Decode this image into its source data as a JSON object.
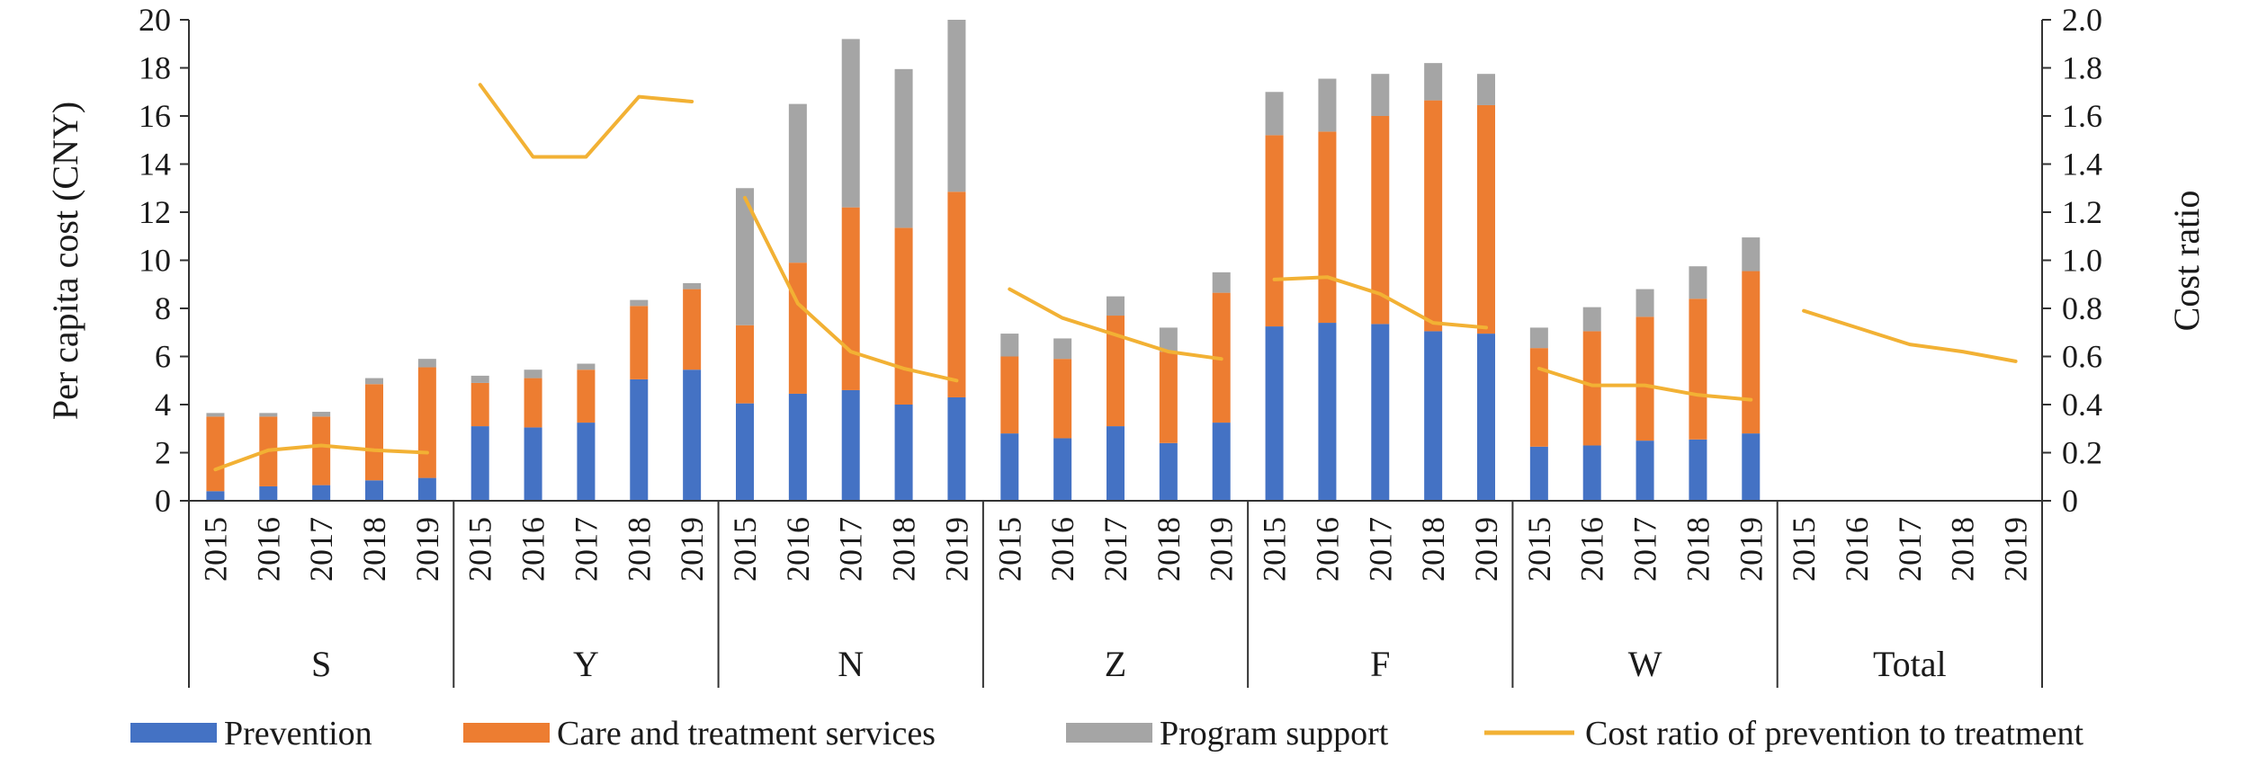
{
  "chart_data": {
    "type": "bar",
    "stacked": true,
    "ylabel": "Per capita cost (CNY)",
    "y2label": "Cost ratio",
    "ylim": [
      0,
      20
    ],
    "y2lim": [
      0,
      2.0
    ],
    "yticks": [
      "0",
      "2",
      "4",
      "6",
      "8",
      "10",
      "12",
      "14",
      "16",
      "18",
      "20"
    ],
    "y2ticks": [
      "0",
      "0.2",
      "0.4",
      "0.6",
      "0.8",
      "1.0",
      "1.2",
      "1.4",
      "1.6",
      "1.8",
      "2.0"
    ],
    "legend_position": "bottom",
    "years": [
      "2015",
      "2016",
      "2017",
      "2018",
      "2019"
    ],
    "groups": [
      {
        "name": "S",
        "prevention": [
          0.4,
          0.6,
          0.65,
          0.85,
          0.95
        ],
        "care": [
          3.1,
          2.9,
          2.85,
          4.0,
          4.6
        ],
        "support": [
          0.15,
          0.15,
          0.2,
          0.25,
          0.35
        ],
        "ratio": [
          0.13,
          0.21,
          0.23,
          0.21,
          0.2
        ]
      },
      {
        "name": "Y",
        "prevention": [
          3.1,
          3.05,
          3.25,
          5.05,
          5.45
        ],
        "care": [
          1.8,
          2.05,
          2.2,
          3.05,
          3.35
        ],
        "support": [
          0.3,
          0.35,
          0.25,
          0.25,
          0.25
        ],
        "ratio": [
          1.73,
          1.43,
          1.43,
          1.68,
          1.66
        ]
      },
      {
        "name": "N",
        "prevention": [
          4.05,
          4.45,
          4.6,
          4.0,
          4.3
        ],
        "care": [
          3.25,
          5.45,
          7.6,
          7.35,
          8.55
        ],
        "support": [
          5.7,
          6.6,
          7.0,
          6.6,
          7.15
        ],
        "ratio": [
          1.26,
          0.82,
          0.62,
          0.55,
          0.5
        ]
      },
      {
        "name": "Z",
        "prevention": [
          2.8,
          2.6,
          3.1,
          2.4,
          3.25
        ],
        "care": [
          3.2,
          3.3,
          4.6,
          3.8,
          5.4
        ],
        "support": [
          0.95,
          0.85,
          0.8,
          1.0,
          0.85
        ],
        "ratio": [
          0.88,
          0.76,
          0.69,
          0.62,
          0.59
        ]
      },
      {
        "name": "F",
        "prevention": [
          7.25,
          7.4,
          7.35,
          7.05,
          6.95
        ],
        "care": [
          7.95,
          7.95,
          8.65,
          9.6,
          9.5
        ],
        "support": [
          1.8,
          2.2,
          1.75,
          1.55,
          1.3
        ],
        "ratio": [
          0.92,
          0.93,
          0.86,
          0.74,
          0.72
        ]
      },
      {
        "name": "W",
        "prevention": [
          2.25,
          2.3,
          2.5,
          2.55,
          2.8
        ],
        "care": [
          4.1,
          4.75,
          5.15,
          5.85,
          6.75
        ],
        "support": [
          0.85,
          1.0,
          1.15,
          1.35,
          1.4
        ],
        "ratio": [
          0.55,
          0.48,
          0.48,
          0.44,
          0.42
        ]
      },
      {
        "name": "Total",
        "prevention": [
          null,
          null,
          null,
          null,
          null
        ],
        "care": [
          null,
          null,
          null,
          null,
          null
        ],
        "support": [
          null,
          null,
          null,
          null,
          null
        ],
        "ratio": [
          0.79,
          0.72,
          0.65,
          0.62,
          0.58
        ]
      }
    ],
    "series": [
      {
        "key": "prevention",
        "name": "Prevention",
        "kind": "bar",
        "color": "#4472C4"
      },
      {
        "key": "care",
        "name": "Care and treatment services",
        "kind": "bar",
        "color": "#ED7D31"
      },
      {
        "key": "support",
        "name": "Program support",
        "kind": "bar",
        "color": "#A5A5A5"
      },
      {
        "key": "ratio",
        "name": "Cost ratio of prevention to treatment",
        "kind": "line",
        "axis": "right",
        "color": "#F2B134"
      }
    ]
  }
}
